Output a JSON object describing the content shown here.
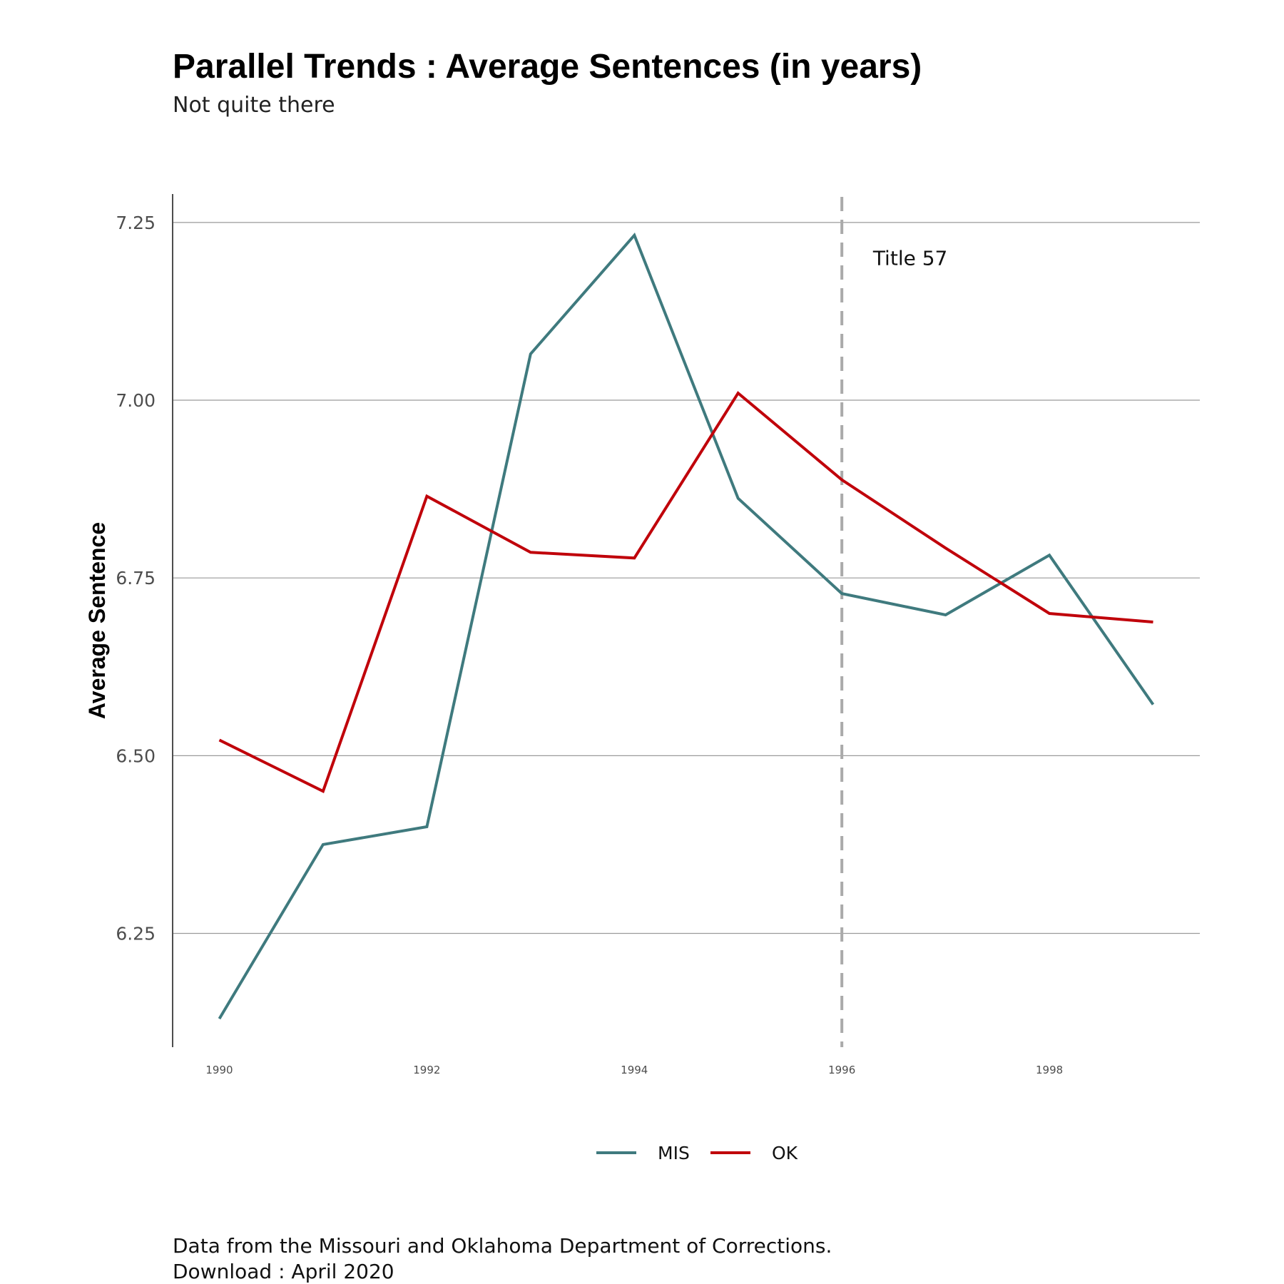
{
  "chart_data": {
    "type": "line",
    "title": "Parallel Trends : Average Sentences (in years)",
    "subtitle": "Not quite there",
    "xlabel": "",
    "ylabel": "Average Sentence",
    "x": [
      1990,
      1991,
      1992,
      1993,
      1994,
      1995,
      1996,
      1997,
      1998,
      1999
    ],
    "xticks": [
      "1990",
      "1992",
      "1994",
      "1996",
      "1998"
    ],
    "yticks": [
      "6.25",
      "6.50",
      "6.75",
      "7.00",
      "7.25"
    ],
    "xlim": [
      1989.55,
      1999.45
    ],
    "ylim": [
      6.09,
      7.29
    ],
    "grid": "horizontal",
    "series": [
      {
        "name": "MIS",
        "color": "#3f7a7e",
        "values": [
          6.13,
          6.375,
          6.4,
          7.065,
          7.232,
          6.862,
          6.728,
          6.698,
          6.782,
          6.572
        ]
      },
      {
        "name": "OK",
        "color": "#c0000a",
        "values": [
          6.522,
          6.45,
          6.865,
          6.786,
          6.778,
          7.01,
          6.888,
          6.792,
          6.7,
          6.688
        ]
      }
    ],
    "vline": {
      "x": 1996,
      "color": "#aaaaaa",
      "label": "Title 57",
      "label_x": 1996.3,
      "label_y": 7.2
    },
    "legend_position": "bottom",
    "caption": [
      "Data from the Missouri and Oklahoma Department of Corrections.",
      "Download : April 2020"
    ]
  }
}
